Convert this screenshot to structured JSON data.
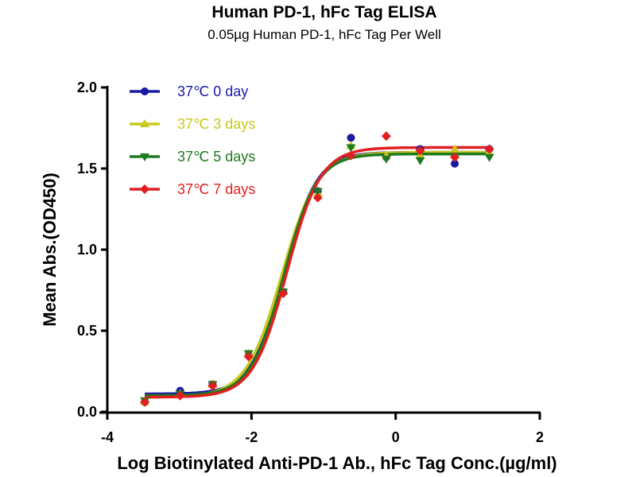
{
  "chart_data": {
    "type": "scatter",
    "title": "Human PD-1, hFc Tag ELISA",
    "subtitle": "0.05µg Human PD-1, hFc Tag Per Well",
    "xlabel": "Log Biotinylated Anti-PD-1 Ab., hFc Tag Conc.(µg/ml)",
    "ylabel": "Mean Abs.(OD450)",
    "xlim": [
      -4,
      2
    ],
    "ylim": [
      0,
      2.0
    ],
    "xticks": [
      -4,
      -2,
      0,
      2
    ],
    "xtick_labels": [
      "-4",
      "-2",
      "0",
      "2"
    ],
    "yticks": [
      0.0,
      0.5,
      1.0,
      1.5,
      2.0
    ],
    "ytick_labels": [
      "0.0",
      "0.5",
      "1.0",
      "1.5",
      "2.0"
    ],
    "grid": false,
    "legend_position": "top-left",
    "fit": "4PL sigmoid",
    "x": [
      -3.48,
      -2.99,
      -2.54,
      -2.04,
      -1.56,
      -1.08,
      -0.62,
      -0.13,
      0.34,
      0.82,
      1.3
    ],
    "series": [
      {
        "name": "37℃ 0 day",
        "color": "#1a1aa6",
        "marker": "circle",
        "values": [
          0.06,
          0.13,
          0.17,
          0.35,
          0.74,
          1.36,
          1.69,
          1.57,
          1.62,
          1.53,
          1.62
        ],
        "fit_params": {
          "bottom": 0.11,
          "top": 1.6,
          "logEC50": -1.55,
          "hill": 1.9
        }
      },
      {
        "name": "37℃ 3 days",
        "color": "#c8c81e",
        "marker": "triangle-up",
        "values": [
          0.06,
          0.11,
          0.17,
          0.36,
          0.74,
          1.35,
          1.64,
          1.58,
          1.58,
          1.62,
          1.6
        ],
        "fit_params": {
          "bottom": 0.09,
          "top": 1.6,
          "logEC50": -1.58,
          "hill": 1.75
        }
      },
      {
        "name": "37℃ 5 days",
        "color": "#1e7a1e",
        "marker": "triangle-down",
        "values": [
          0.07,
          0.11,
          0.17,
          0.36,
          0.74,
          1.36,
          1.63,
          1.56,
          1.55,
          1.57,
          1.57
        ],
        "fit_params": {
          "bottom": 0.1,
          "top": 1.59,
          "logEC50": -1.55,
          "hill": 1.9
        }
      },
      {
        "name": "37℃ 7 days",
        "color": "#e02020",
        "marker": "diamond",
        "values": [
          0.06,
          0.1,
          0.16,
          0.34,
          0.73,
          1.32,
          1.58,
          1.7,
          1.61,
          1.57,
          1.62
        ],
        "fit_params": {
          "bottom": 0.09,
          "top": 1.63,
          "logEC50": -1.51,
          "hill": 1.85
        }
      }
    ]
  }
}
